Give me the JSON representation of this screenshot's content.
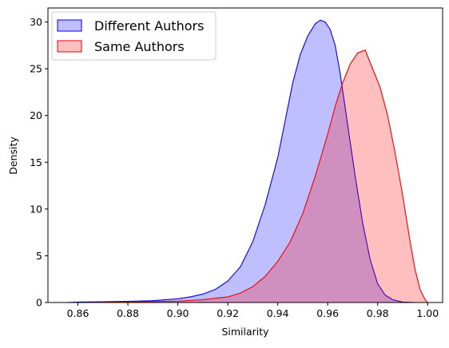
{
  "chart_data": {
    "type": "area",
    "title": "",
    "xlabel": "Similarity",
    "ylabel": "Density",
    "xlim": [
      0.848,
      1.006
    ],
    "ylim": [
      0,
      31.5
    ],
    "xticks": [
      0.86,
      0.88,
      0.9,
      0.92,
      0.94,
      0.96,
      0.98,
      1.0
    ],
    "xtick_labels": [
      "0.86",
      "0.88",
      "0.90",
      "0.92",
      "0.94",
      "0.96",
      "0.98",
      "1.00"
    ],
    "yticks": [
      0,
      5,
      10,
      15,
      20,
      25,
      30
    ],
    "ytick_labels": [
      "0",
      "5",
      "10",
      "15",
      "20",
      "25",
      "30"
    ],
    "grid": false,
    "legend_position": "top-left",
    "series": [
      {
        "name": "Different Authors",
        "color": "#0000ee",
        "fill": "#0000ff",
        "fill_opacity": 0.25,
        "x": [
          0.855,
          0.86,
          0.87,
          0.88,
          0.89,
          0.9,
          0.905,
          0.91,
          0.915,
          0.92,
          0.925,
          0.93,
          0.935,
          0.94,
          0.943,
          0.946,
          0.949,
          0.952,
          0.955,
          0.957,
          0.959,
          0.961,
          0.963,
          0.965,
          0.968,
          0.971,
          0.974,
          0.977,
          0.98,
          0.983,
          0.986,
          0.99,
          0.995,
          1.0
        ],
        "y": [
          0,
          0.05,
          0.08,
          0.12,
          0.2,
          0.4,
          0.6,
          0.9,
          1.4,
          2.3,
          3.8,
          6.5,
          10.5,
          15.5,
          19.5,
          23.5,
          26.5,
          28.5,
          29.8,
          30.2,
          30.0,
          29.2,
          27.5,
          24.5,
          19.0,
          13.5,
          8.5,
          4.6,
          2.0,
          0.8,
          0.3,
          0.05,
          0.0,
          0.0
        ]
      },
      {
        "name": "Same Authors",
        "color": "#ee0000",
        "fill": "#ff0000",
        "fill_opacity": 0.25,
        "x": [
          0.86,
          0.87,
          0.88,
          0.89,
          0.9,
          0.91,
          0.92,
          0.925,
          0.93,
          0.935,
          0.94,
          0.945,
          0.95,
          0.955,
          0.96,
          0.963,
          0.966,
          0.969,
          0.972,
          0.975,
          0.978,
          0.981,
          0.984,
          0.987,
          0.99,
          0.993,
          0.995,
          0.997,
          0.999,
          1.0
        ],
        "y": [
          0.0,
          0.02,
          0.05,
          0.1,
          0.15,
          0.3,
          0.6,
          1.0,
          1.7,
          2.8,
          4.4,
          6.5,
          9.5,
          13.5,
          18.0,
          21.0,
          23.5,
          25.5,
          26.7,
          27.0,
          25.0,
          23.0,
          20.0,
          16.0,
          11.5,
          6.5,
          3.5,
          1.4,
          0.3,
          0.0
        ]
      }
    ]
  }
}
